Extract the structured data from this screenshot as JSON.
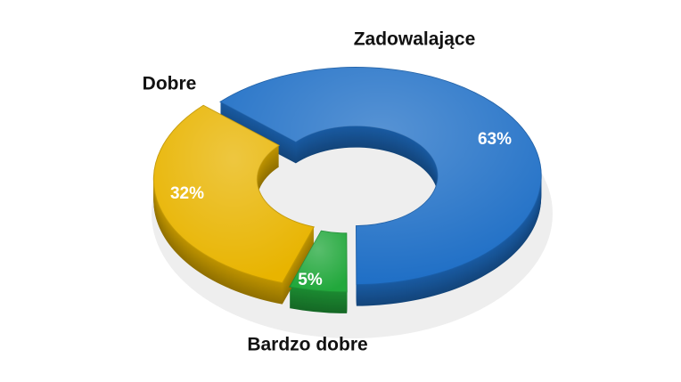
{
  "chart_data": {
    "type": "donut",
    "categories": [
      "Zadowalające",
      "Bardzo dobre",
      "Dobre"
    ],
    "values": [
      63,
      5,
      32
    ],
    "value_labels": [
      "63%",
      "5%",
      "32%"
    ],
    "colors": [
      "#1f6fc6",
      "#22a83c",
      "#e8b400"
    ]
  }
}
